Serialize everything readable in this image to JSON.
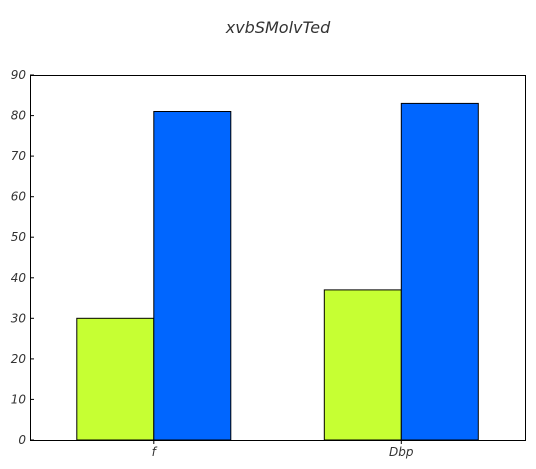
{
  "chart_data": {
    "type": "bar",
    "title": "xvbSMolvTed",
    "xlabel": "",
    "ylabel": "",
    "categories": [
      "f",
      "Dbp"
    ],
    "series": [
      {
        "values": [
          30,
          37
        ],
        "color": "#c6ff33"
      },
      {
        "values": [
          81,
          83
        ],
        "color": "#0066ff"
      }
    ],
    "ylim": [
      0,
      90
    ],
    "yticks": [
      0,
      10,
      20,
      30,
      40,
      50,
      60,
      70,
      80,
      90
    ],
    "grid": false,
    "legend": "none"
  }
}
